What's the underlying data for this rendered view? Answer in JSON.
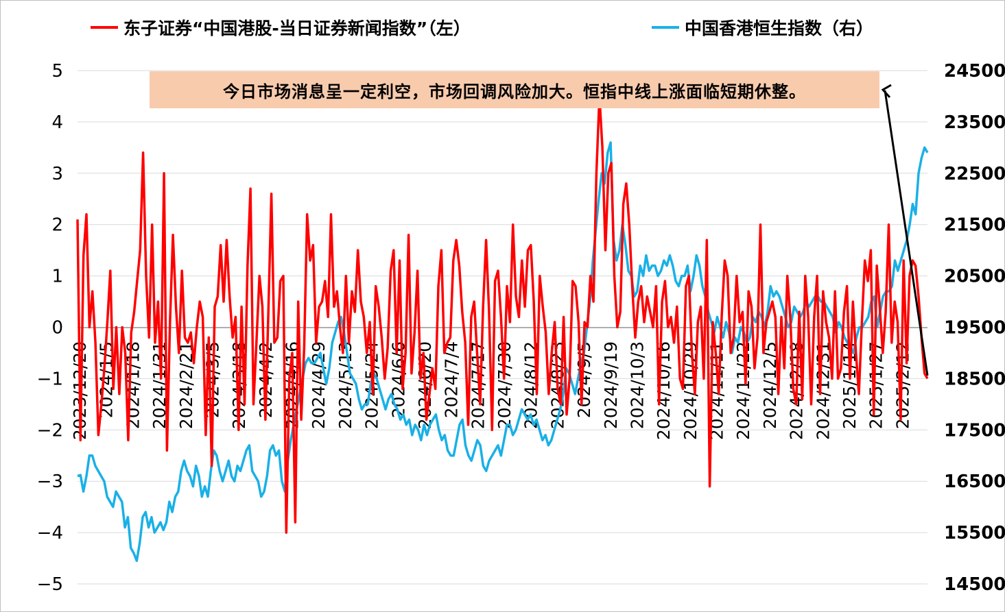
{
  "legend": {
    "left_series": "东子证券“中国港股-当日证券新闻指数”（左）",
    "right_series": "中国香港恒生指数（右）"
  },
  "annotation": {
    "text": "今日市场消息呈一定利空，市场回调风险加大。恒指中线上涨面临短期休整。"
  },
  "colors": {
    "left_series": "#ff0000",
    "right_series": "#1ab0e6",
    "annotation_bg": "#f8cbad",
    "grid": "#d9d9d9"
  },
  "chart_data": {
    "type": "line",
    "x_tick_labels": [
      "2023/12/20",
      "2024/1/5",
      "2024/1/18",
      "2024/1/31",
      "2024/2/21",
      "2024/3/5",
      "2024/3/18",
      "2024/4/2",
      "2024/4/16",
      "2024/4/29",
      "2024/5/13",
      "2024/5/24",
      "2024/6/6",
      "2024/6/20",
      "2024/7/4",
      "2024/7/17",
      "2024/7/30",
      "2024/8/12",
      "2024/8/23",
      "2024/9/5",
      "2024/9/19",
      "2024/10/3",
      "2024/10/16",
      "2024/10/29",
      "2024/11/11",
      "2024/11/22",
      "2024/12/5",
      "2024/12/18",
      "2024/12/31",
      "2025/1/14",
      "2025/1/27",
      "2025/2/12"
    ],
    "y_left": {
      "min": -5,
      "max": 5,
      "ticks": [
        5,
        4,
        3,
        2,
        1,
        0,
        -1,
        -2,
        -3,
        -4,
        -5
      ],
      "tick_labels": [
        "5",
        "4",
        "3",
        "2",
        "1",
        "0",
        "−1",
        "−2",
        "−3",
        "−4",
        "−5"
      ]
    },
    "y_right": {
      "min": 14500,
      "max": 24500,
      "ticks": [
        24500,
        23500,
        22500,
        21500,
        20500,
        19500,
        18500,
        17500,
        16500,
        15500,
        14500
      ]
    },
    "series": [
      {
        "name": "东子证券“中国港股-当日证券新闻指数”（左）",
        "axis": "left",
        "values": [
          2.1,
          -2.2,
          1.4,
          2.2,
          0,
          0.7,
          -0.3,
          -2.1,
          -1.5,
          -0.8,
          0.1,
          1.1,
          -1.2,
          0,
          -1.3,
          0,
          -0.5,
          -2.2,
          -0.1,
          0.3,
          0.9,
          1.5,
          3.4,
          1.0,
          -0.2,
          2.0,
          -0.3,
          0.5,
          -1.0,
          3.0,
          -2.4,
          0.1,
          1.8,
          0.4,
          -0.5,
          1.1,
          -0.2,
          -0.3,
          -0.1,
          -0.7,
          0,
          0.5,
          0.2,
          -2.1,
          -0.2,
          -2.7,
          0.4,
          0.6,
          1.6,
          0.5,
          1.7,
          0.6,
          -0.2,
          0.2,
          -2.0,
          0.4,
          -1.5,
          1.2,
          2.7,
          -1.5,
          -0.3,
          1.0,
          0.4,
          -1.8,
          0.3,
          2.6,
          -0.3,
          -0.2,
          0.9,
          1.0,
          -4.0,
          -1.0,
          -0.5,
          -3.8,
          0.5,
          -1.8,
          -0.4,
          2.2,
          1.3,
          1.6,
          -0.3,
          0.4,
          0.5,
          0.9,
          0.2,
          2.2,
          0.4,
          0.7,
          0,
          -0.5,
          1.0,
          -0.3,
          0.7,
          0.3,
          1.5,
          0.5,
          0.2,
          -0.5,
          0.1,
          -1.3,
          0.8,
          0.4,
          -0.2,
          -1.0,
          -0.4,
          1.1,
          1.5,
          -0.5,
          1.3,
          -1.2,
          -0.5,
          1.8,
          -0.9,
          -0.1,
          1.1,
          -1.0,
          -0.5,
          -1.8,
          -1.3,
          -0.8,
          -1.2,
          0.8,
          1.5,
          -0.5,
          -0.3,
          -0.2,
          1.3,
          1.7,
          1.2,
          0.3,
          -0.3,
          -1.9,
          0.2,
          0.5,
          -0.5,
          -1.5,
          0.4,
          1.7,
          0.3,
          -2.0,
          0.9,
          1.1,
          0.2,
          -1.0,
          0.8,
          0.1,
          2.0,
          0.6,
          0.2,
          1.3,
          0.4,
          1.5,
          1.6,
          0.5,
          -1.3,
          1.0,
          0.4,
          -0.1,
          -1.3,
          -0.5,
          0.1,
          -1.2,
          -1.5,
          0.2,
          -1.7,
          -1.0,
          0.9,
          0.8,
          0.1,
          -1.5,
          0.1,
          0,
          1.0,
          0.5,
          3.0,
          4.5,
          3.5,
          1.5,
          3.0,
          3.2,
          1.0,
          0,
          0.3,
          2.4,
          2.8,
          2.0,
          0.8,
          -0.2,
          0.5,
          0.8,
          0.1,
          0.6,
          0.3,
          0,
          0.8,
          -1.5,
          0.5,
          0.9,
          0,
          0.2,
          -0.3,
          0.4,
          -1.0,
          -1.2,
          0.8,
          1.0,
          -0.5,
          -1.3,
          0.1,
          0.4,
          -1.0,
          1.7,
          -3.1,
          0.1,
          -0.5,
          -1.3,
          0.2,
          1.3,
          1.0,
          -0.5,
          -0.2,
          1.0,
          0.1,
          0.3,
          -1.1,
          0.7,
          0.4,
          -0.8,
          -0.2,
          2.0,
          -0.5,
          0.1,
          0.3,
          0.5,
          0.2,
          -1.3,
          0.2,
          -0.8,
          1.0,
          0.2,
          -1.2,
          -1.5,
          0.3,
          -1.4,
          1.0,
          0.2,
          -1.5,
          0.2,
          1.0,
          -1.3,
          0.7,
          0.1,
          -0.2,
          -1.0,
          0.7,
          -1.0,
          -0.8,
          0.3,
          0.8,
          -1.0,
          0.5,
          -0.5,
          -1.3,
          0.1,
          1.3,
          0.9,
          1.5,
          -1.7,
          1.2,
          0.4,
          -0.5,
          0.3,
          2.0,
          -0.3,
          0.5,
          0.1,
          -1.8,
          1.3,
          -0.7,
          1.0,
          1.3,
          1.2,
          0.6,
          -0.2,
          -0.9,
          -1.0
        ]
      },
      {
        "name": "中国香港恒生指数（右）",
        "axis": "right",
        "values": [
          16600,
          16620,
          16300,
          16600,
          17000,
          17000,
          16800,
          16700,
          16600,
          16500,
          16200,
          16100,
          16000,
          16300,
          16200,
          16100,
          15600,
          15800,
          15200,
          15100,
          14950,
          15300,
          15800,
          15900,
          15600,
          15800,
          15500,
          15600,
          15700,
          15550,
          15700,
          16100,
          15900,
          16200,
          16300,
          16700,
          16900,
          16700,
          16600,
          16400,
          16800,
          16600,
          16200,
          16400,
          16200,
          16700,
          17100,
          17000,
          16700,
          16500,
          16700,
          16900,
          16600,
          16500,
          16800,
          16700,
          16900,
          17100,
          17200,
          16700,
          16600,
          16500,
          16200,
          16300,
          16600,
          17100,
          17200,
          17000,
          17100,
          16500,
          16300,
          16900,
          17300,
          17600,
          17900,
          18200,
          18500,
          18800,
          18900,
          18800,
          18800,
          18900,
          19000,
          18700,
          18400,
          18700,
          19200,
          19400,
          19600,
          19700,
          19400,
          19000,
          18600,
          18500,
          18400,
          18100,
          17900,
          18000,
          18000,
          18400,
          18600,
          18500,
          18300,
          18100,
          17900,
          18100,
          18200,
          18000,
          17900,
          17700,
          17800,
          17600,
          17700,
          17400,
          17600,
          17500,
          17300,
          17600,
          17400,
          17600,
          17700,
          17800,
          17500,
          17300,
          17400,
          17100,
          17000,
          17000,
          17300,
          17600,
          17700,
          17200,
          17000,
          16900,
          17100,
          17300,
          17200,
          16800,
          16700,
          16900,
          17000,
          17100,
          17200,
          17000,
          17300,
          17600,
          17600,
          17400,
          17500,
          17700,
          17900,
          17800,
          17700,
          17800,
          17600,
          17700,
          17500,
          17300,
          17400,
          17200,
          17300,
          17500,
          17700,
          17900,
          18200,
          18700,
          18600,
          18400,
          18200,
          18500,
          18800,
          19000,
          19500,
          20000,
          20800,
          21400,
          22000,
          22500,
          22300,
          22900,
          23100,
          21200,
          20800,
          21000,
          21500,
          21100,
          20600,
          20500,
          20100,
          20200,
          20700,
          20500,
          20900,
          20600,
          20700,
          20700,
          20500,
          20600,
          20800,
          20700,
          20900,
          20700,
          20400,
          20300,
          20500,
          20500,
          20700,
          20200,
          20500,
          20900,
          20700,
          20300,
          20100,
          19800,
          19600,
          19400,
          19700,
          19500,
          19300,
          19600,
          19400,
          19000,
          19300,
          19200,
          19500,
          19400,
          19200,
          19300,
          19700,
          19600,
          19800,
          19700,
          19500,
          19800,
          20300,
          20100,
          20200,
          20100,
          19900,
          19700,
          19500,
          19600,
          19900,
          19800,
          19700,
          19800,
          20000,
          19900,
          20000,
          20100,
          20100,
          20000,
          20000,
          19900,
          19800,
          19700,
          19400,
          19600,
          19500,
          19300,
          19200,
          19100,
          19000,
          19300,
          19500,
          19500,
          19600,
          19700,
          20000,
          20100,
          19500,
          19800,
          20100,
          20200,
          20200,
          20300,
          20800,
          20600,
          20800,
          21000,
          21200,
          21500,
          21900,
          21700,
          22500,
          22800,
          23000,
          22900
        ]
      }
    ]
  }
}
